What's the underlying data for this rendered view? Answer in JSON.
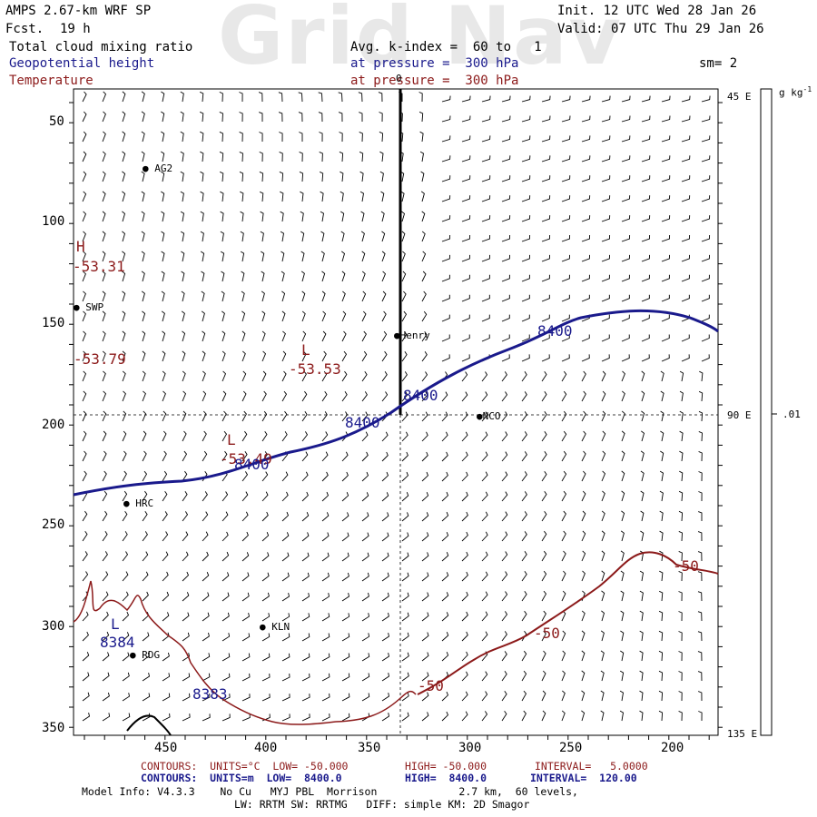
{
  "watermark": "Grid Nav",
  "header": {
    "model": "AMPS 2.67-km WRF SP",
    "fcst_label": "Fcst.",
    "fcst_value": "19 h",
    "init": "Init. 12 UTC Wed 28 Jan 26",
    "valid": "Valid: 07 UTC Thu 29 Jan 26",
    "field1": "Total cloud mixing ratio",
    "field2": "Geopotential height",
    "field3": "Temperature",
    "avg": "Avg. k-index =  60 to   1",
    "pressure2": "at pressure =  300 hPa",
    "pressure3": "at pressure =  300 hPa",
    "sm": "sm= 2"
  },
  "colorbar": {
    "units": "g kg",
    "units_exp": "-1",
    "value": ".01"
  },
  "axes": {
    "x_ticks": [
      "450",
      "400",
      "350",
      "300",
      "250",
      "200"
    ],
    "y_ticks": [
      "50",
      "100",
      "150",
      "200",
      "250",
      "300",
      "350"
    ],
    "right_ticks": [
      "45 E",
      "90 E",
      "135 E"
    ],
    "top_tick": "0"
  },
  "stations": [
    {
      "name": "AG2"
    },
    {
      "name": "SWP"
    },
    {
      "name": "Henry"
    },
    {
      "name": "NCO"
    },
    {
      "name": "HRC"
    },
    {
      "name": "KLN"
    },
    {
      "name": "RDG"
    }
  ],
  "map_labels": {
    "H": "H",
    "h_value": "-53.31",
    "l_center": "L",
    "l_center_value": "-53.53",
    "l_left": "L",
    "l_left_value": "-53.49",
    "left_value": "-53.79",
    "l_low": "L",
    "z1": "8400",
    "z2": "8400",
    "z3": "8400",
    "z4": "8400",
    "z5": "8384",
    "z6": "8383",
    "t1": "-50",
    "t2": "-50",
    "t3": "-50"
  },
  "legend": {
    "temp": {
      "contours": "CONTOURS:  UNITS=°C  LOW= -50.000",
      "high": "HIGH= -50.000",
      "interval": "INTERVAL=   5.0000"
    },
    "height": {
      "contours": "CONTOURS:  UNITS=m  LOW=  8400.0",
      "high": "HIGH=  8400.0",
      "interval": "INTERVAL=  120.00"
    }
  },
  "footer": {
    "line1": "Model Info: V4.3.3    No Cu   MYJ PBL  Morrison             2.7 km,  60 levels,",
    "line2": "LW: RRTM SW: RRTMG   DIFF: simple KM: 2D Smagor"
  }
}
